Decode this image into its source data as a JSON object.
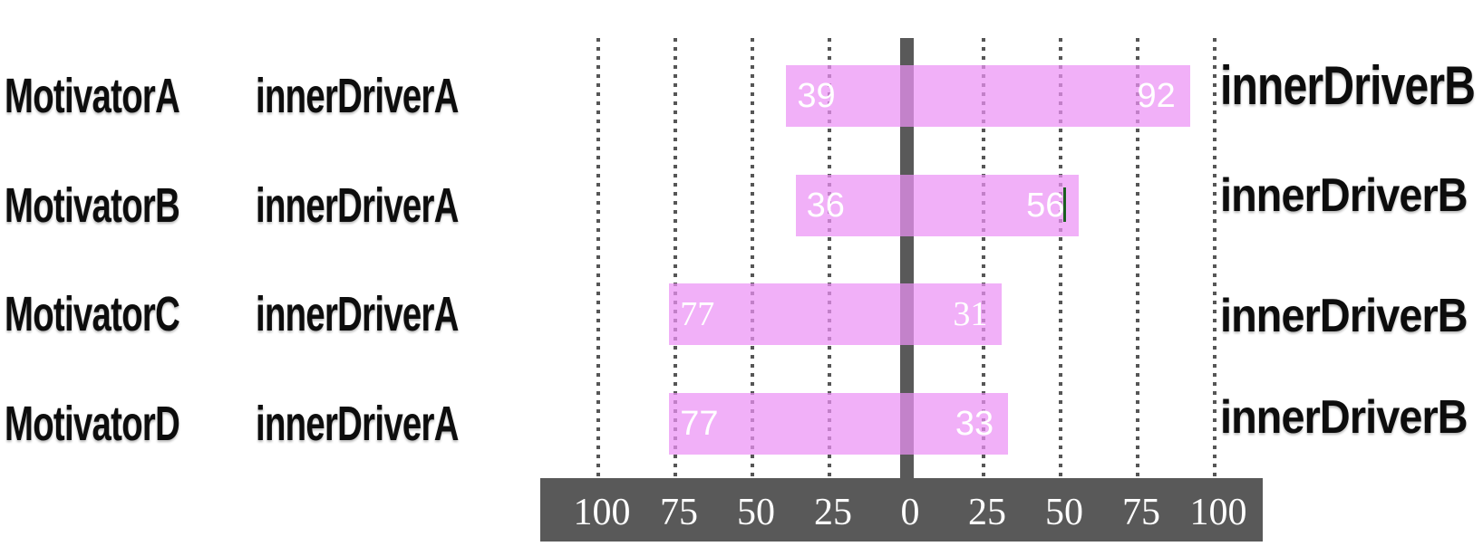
{
  "chart_data": {
    "type": "bar",
    "orientation": "horizontal-diverging",
    "title": "",
    "grid": "dotted-vertical-gridlines",
    "legend_position": "none",
    "axis": {
      "range": [
        -100,
        100
      ],
      "tick_step": 25,
      "tick_labels": [
        "100",
        "75",
        "50",
        "25",
        "0",
        "25",
        "50",
        "75",
        "100"
      ]
    },
    "rows": [
      {
        "category": "MotivatorA",
        "left": {
          "label": "innerDriverA",
          "value": 39
        },
        "right": {
          "label": "innerDriverB",
          "value": 92
        }
      },
      {
        "category": "MotivatorB",
        "left": {
          "label": "innerDriverA",
          "value": 36
        },
        "right": {
          "label": "innerDriverB",
          "value": 56
        }
      },
      {
        "category": "MotivatorC",
        "left": {
          "label": "innerDriverA",
          "value": 77
        },
        "right": {
          "label": "innerDriverB",
          "value": 31
        }
      },
      {
        "category": "MotivatorD",
        "left": {
          "label": "innerDriverA",
          "value": 77
        },
        "right": {
          "label": "innerDriverB",
          "value": 33
        }
      }
    ],
    "colors": {
      "bar": "#eb91f5",
      "bar_opacity": 0.72,
      "axis_bar": "#595959",
      "zero_line": "#595959",
      "gridline": "#3e3e3e",
      "value_text": "#ffffff",
      "label_text": "#0d0d0d",
      "text_cursor": "#1b5e20"
    },
    "annotations": {
      "text_cursor_after_value": "56",
      "text_cursor_row": "MotivatorB"
    }
  }
}
